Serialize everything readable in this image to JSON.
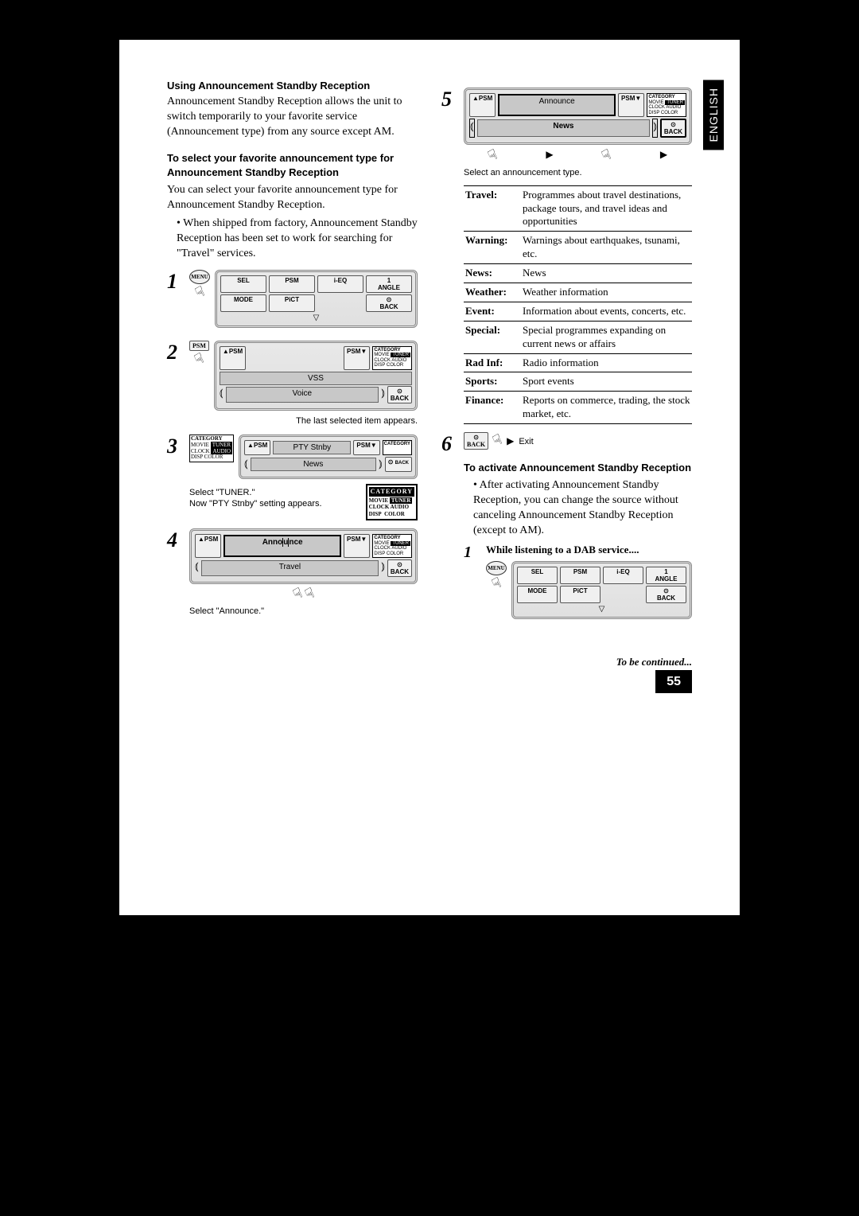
{
  "language_tab": "ENGLISH",
  "page_number": "55",
  "continued": "To be continued...",
  "left": {
    "h1": "Using Announcement Standby Reception",
    "p1": "Announcement Standby Reception allows the unit to switch temporarily to your favorite service (Announcement type) from any source except AM.",
    "h2": "To select your favorite announcement type for Announcement Standby Reception",
    "p2": "You can select your favorite announcement type for Announcement Standby Reception.",
    "bullet1": "• When shipped from factory, Announcement Standby Reception has been set to work for searching for \"Travel\" services.",
    "step2_caption": "The last selected item appears.",
    "step3_caption1": "Select \"TUNER.\"",
    "step3_caption2": "Now \"PTY Stnby\" setting appears.",
    "step4_caption": "Select \"Announce.\""
  },
  "right": {
    "step5_caption": "Select an announcement type.",
    "table": [
      {
        "k": "Travel:",
        "v": "Programmes about travel destinations, package tours, and travel ideas and opportunities"
      },
      {
        "k": "Warning:",
        "v": "Warnings about earthquakes, tsunami, etc."
      },
      {
        "k": "News:",
        "v": "News"
      },
      {
        "k": "Weather:",
        "v": "Weather information"
      },
      {
        "k": "Event:",
        "v": "Information about events, concerts, etc."
      },
      {
        "k": "Special:",
        "v": "Special programmes expanding on current news or affairs"
      },
      {
        "k": "Rad Inf:",
        "v": "Radio information"
      },
      {
        "k": "Sports:",
        "v": "Sport events"
      },
      {
        "k": "Finance:",
        "v": "Reports on commerce, trading, the stock market, etc."
      }
    ],
    "exit_label": "Exit",
    "h3": "To activate Announcement Standby Reception",
    "bullet2": "• After activating Announcement Standby Reception, you can change the source without canceling Announcement Standby Reception (except to AM).",
    "step1b": "While listening to a DAB service...."
  },
  "panel": {
    "menu": "MENU",
    "sel": "SEL",
    "psm": "PSM",
    "ieq": "i-EQ",
    "angle": "ANGLE",
    "mode": "MODE",
    "pict": "PiCT",
    "back": "BACK",
    "category": "CATEGORY",
    "vss": "VSS",
    "voice": "Voice",
    "pty": "PTY Stnby",
    "news": "News",
    "announce": "Announce",
    "travel": "Travel",
    "cat_lines": "MOVIE TUNER CLOCK AUDIO DISP COLOR",
    "one": "1"
  }
}
